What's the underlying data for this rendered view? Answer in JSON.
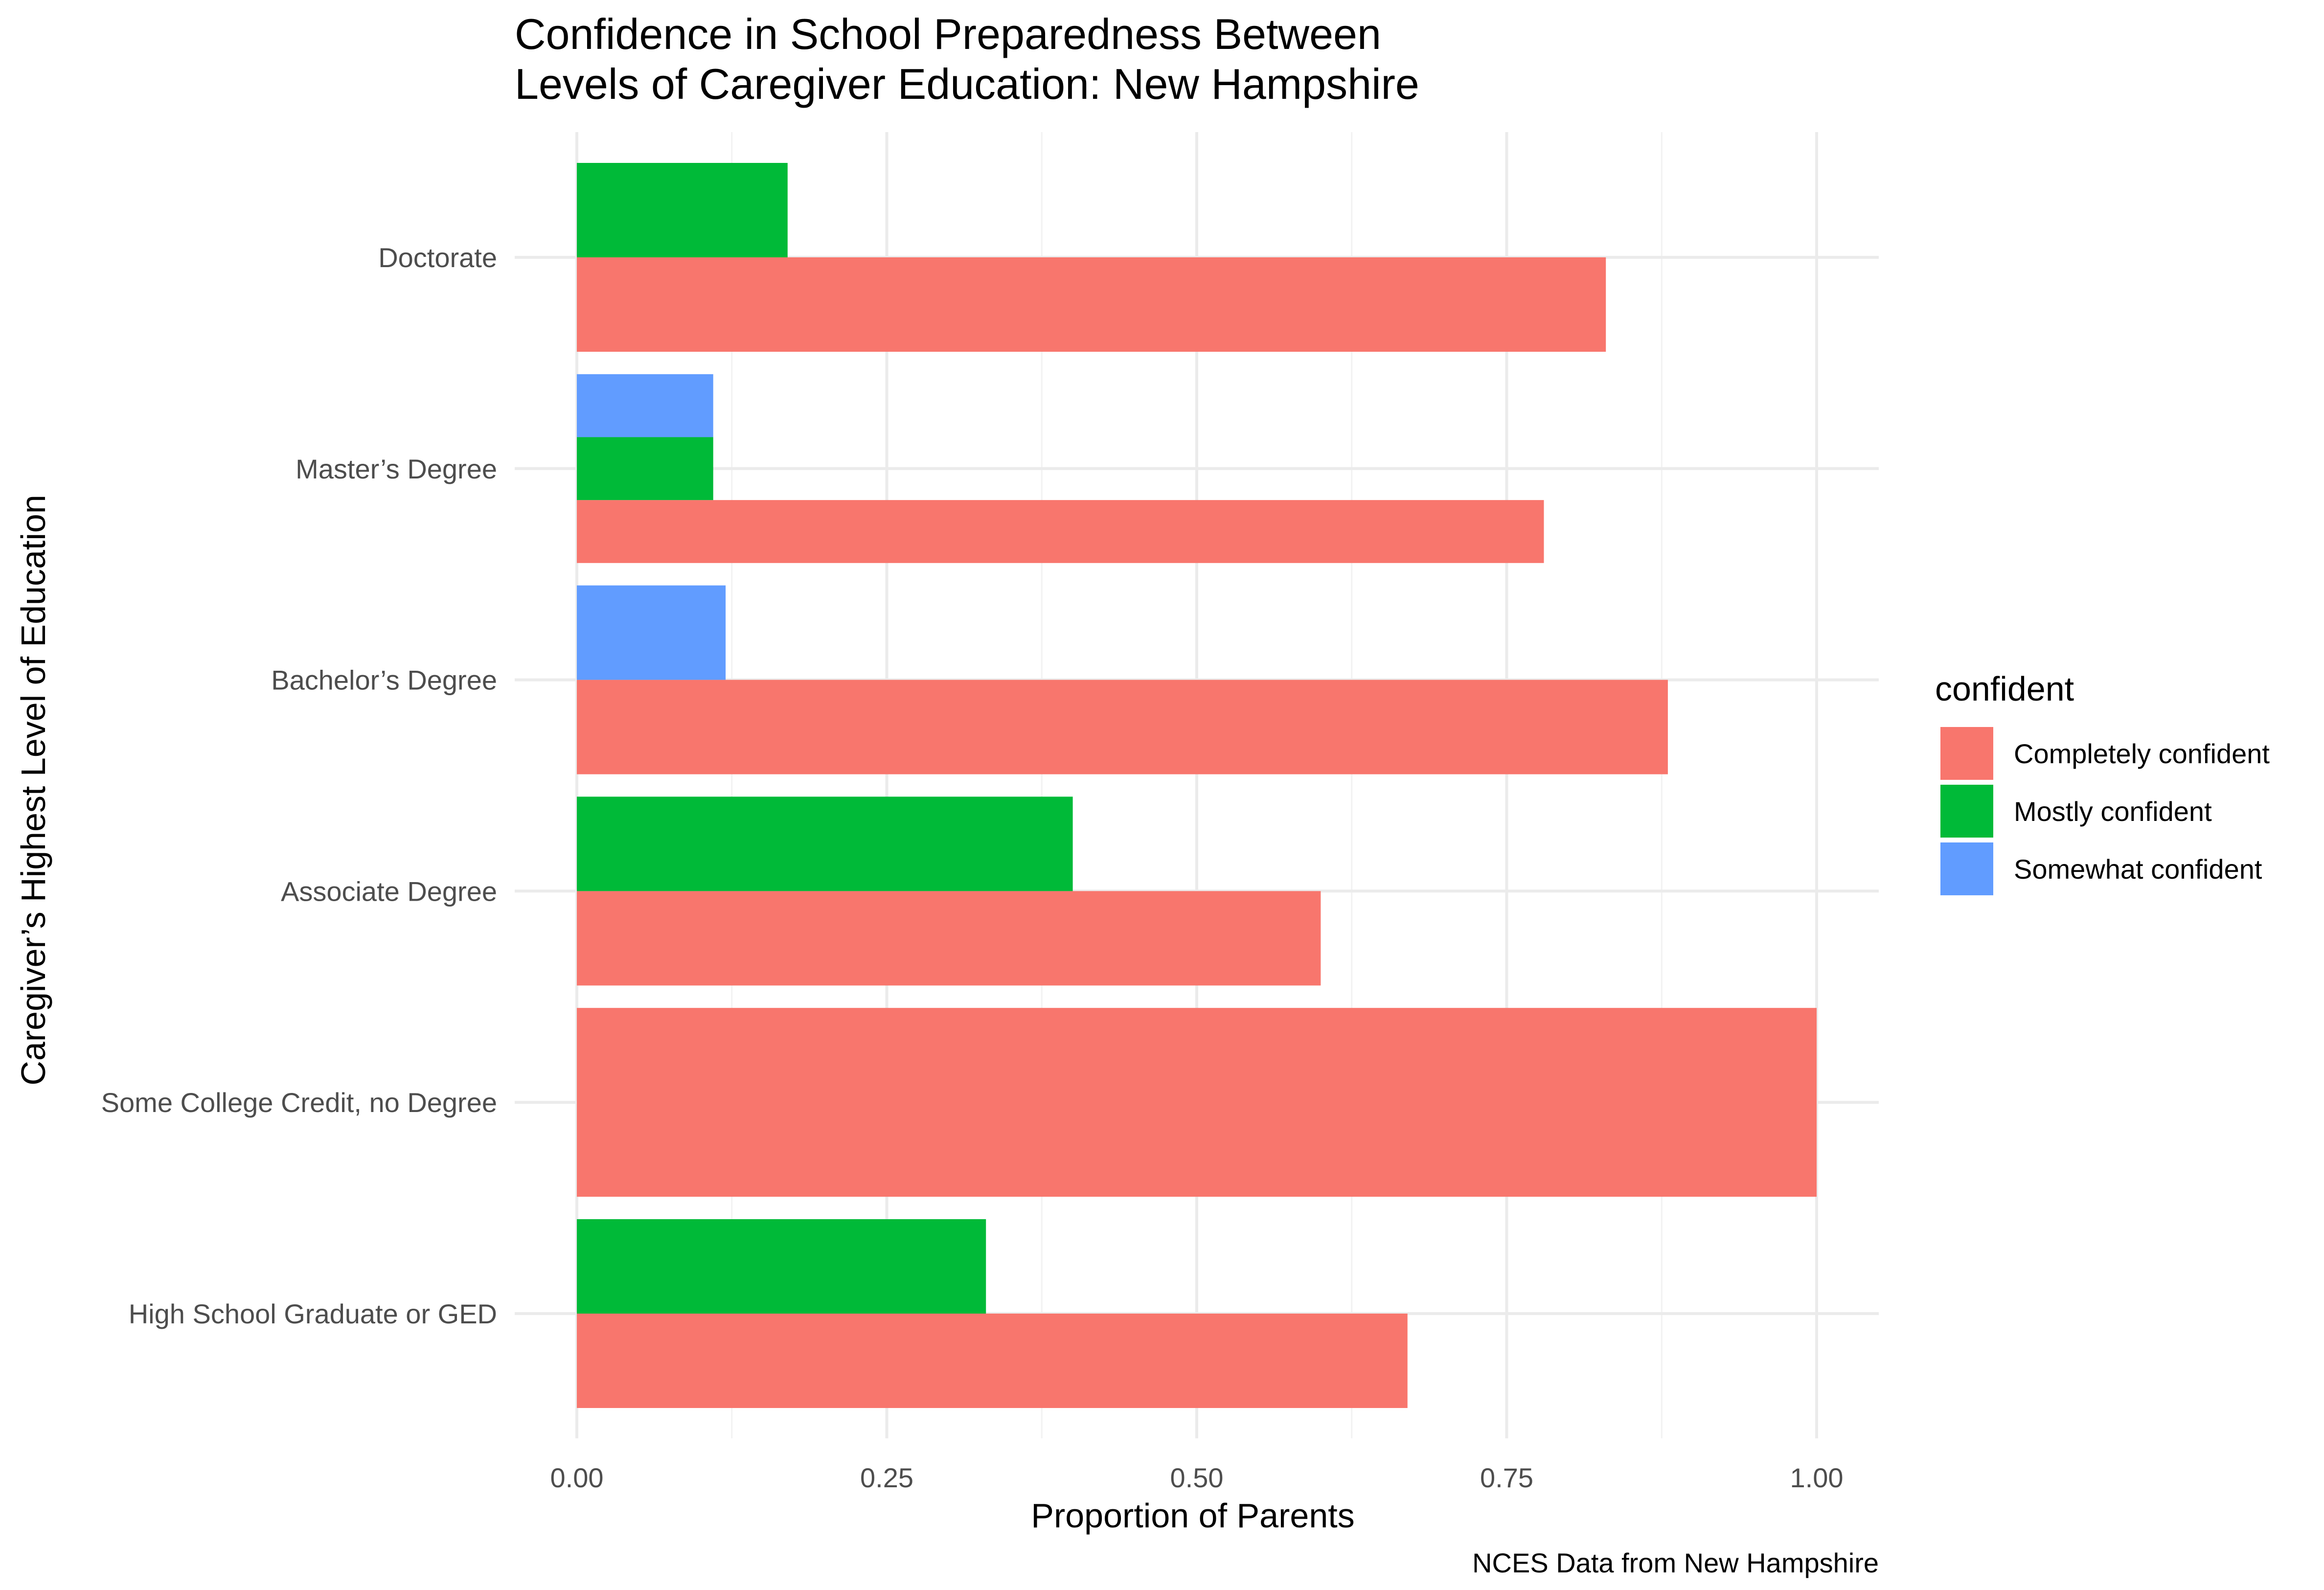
{
  "chart_data": {
    "type": "bar",
    "orientation": "horizontal",
    "title_lines": [
      "Confidence in School Preparedness Between",
      "Levels of Caregiver Education: New Hampshire"
    ],
    "xlabel": "Proportion of Parents",
    "ylabel": "Caregiver’s Highest Level of Education",
    "caption": "NCES Data from New Hampshire",
    "xlim": [
      0,
      1
    ],
    "x_ticks": [
      {
        "value": 0.0,
        "label": "0.00"
      },
      {
        "value": 0.25,
        "label": "0.25"
      },
      {
        "value": 0.5,
        "label": "0.50"
      },
      {
        "value": 0.75,
        "label": "0.75"
      },
      {
        "value": 1.0,
        "label": "1.00"
      }
    ],
    "x_minor_ticks": [
      0.125,
      0.375,
      0.625,
      0.875
    ],
    "categories": [
      "High School Graduate or GED",
      "Some College Credit, no Degree",
      "Associate Degree",
      "Bachelor’s Degree",
      "Master’s Degree",
      "Doctorate"
    ],
    "legend": {
      "title": "confident",
      "position": "right"
    },
    "series": [
      {
        "name": "Completely confident",
        "color": "#F8766D",
        "values": [
          0.67,
          1.0,
          0.6,
          0.88,
          0.78,
          0.83
        ]
      },
      {
        "name": "Mostly confident",
        "color": "#00BA38",
        "values": [
          0.33,
          null,
          0.4,
          null,
          0.11,
          0.17
        ]
      },
      {
        "name": "Somewhat confident",
        "color": "#619CFF",
        "values": [
          null,
          null,
          null,
          0.12,
          0.11,
          null
        ]
      }
    ]
  }
}
